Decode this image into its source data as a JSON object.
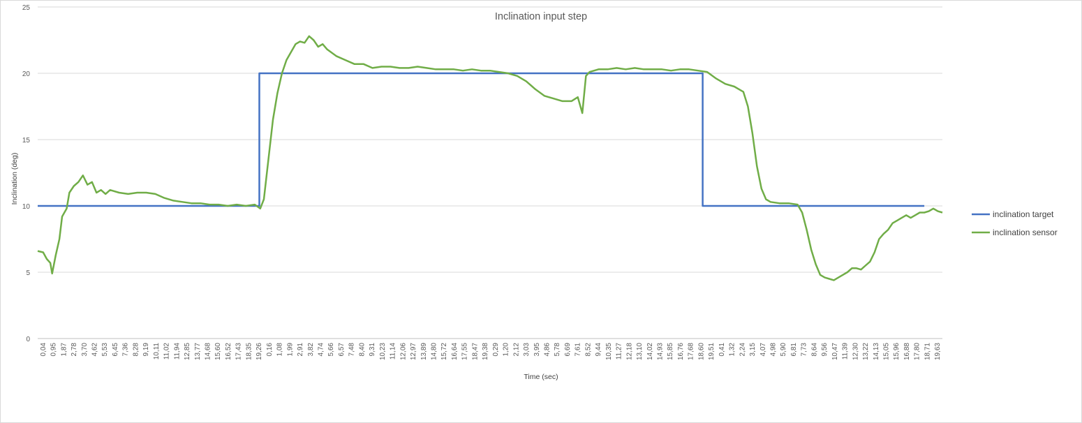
{
  "chart_data": {
    "type": "line",
    "title": "Inclination input step",
    "xlabel": "Time (sec)",
    "ylabel": "Inclination (deg)",
    "ylim": [
      0,
      25
    ],
    "y_ticks": [
      0,
      5,
      10,
      15,
      20,
      25
    ],
    "grid": "horizontal",
    "legend_position": "right",
    "x_tick_labels": [
      "0,04",
      "0,95",
      "1,87",
      "2,78",
      "3,70",
      "4,62",
      "5,53",
      "6,45",
      "7,36",
      "8,28",
      "9,19",
      "10,11",
      "11,02",
      "11,94",
      "12,85",
      "13,77",
      "14,68",
      "15,60",
      "16,52",
      "17,43",
      "18,35",
      "19,26",
      "0,16",
      "1,08",
      "1,99",
      "2,91",
      "3,82",
      "4,74",
      "5,66",
      "6,57",
      "7,48",
      "8,40",
      "9,31",
      "10,23",
      "11,14",
      "12,06",
      "12,97",
      "13,89",
      "14,80",
      "15,72",
      "16,64",
      "17,55",
      "18,47",
      "19,38",
      "0,29",
      "1,20",
      "2,12",
      "3,03",
      "3,95",
      "4,86",
      "5,78",
      "6,69",
      "7,61",
      "8,52",
      "9,44",
      "10,35",
      "11,27",
      "12,18",
      "13,10",
      "14,02",
      "14,93",
      "15,85",
      "16,76",
      "17,68",
      "18,60",
      "19,51",
      "0,41",
      "1,32",
      "2,24",
      "3,15",
      "4,07",
      "4,98",
      "5,90",
      "6,81",
      "7,73",
      "8,64",
      "9,56",
      "10,47",
      "11,39",
      "12,30",
      "13,22",
      "14,13",
      "15,05",
      "15,96",
      "16,88",
      "17,80",
      "18,71",
      "19,63"
    ],
    "series": [
      {
        "name": "inclination target",
        "color": "#4472c4",
        "points": [
          [
            0,
            10
          ],
          [
            24.5,
            10
          ],
          [
            24.5,
            20
          ],
          [
            73.5,
            20
          ],
          [
            73.5,
            10
          ],
          [
            98,
            10
          ]
        ]
      },
      {
        "name": "inclination sensor",
        "color": "#70ad47",
        "points": [
          [
            0,
            6.6
          ],
          [
            0.6,
            6.5
          ],
          [
            1.0,
            6.0
          ],
          [
            1.4,
            5.7
          ],
          [
            1.6,
            4.9
          ],
          [
            2.0,
            6.3
          ],
          [
            2.4,
            7.5
          ],
          [
            2.7,
            9.2
          ],
          [
            3.2,
            9.8
          ],
          [
            3.5,
            11.0
          ],
          [
            4.0,
            11.5
          ],
          [
            4.5,
            11.8
          ],
          [
            5.0,
            12.3
          ],
          [
            5.5,
            11.6
          ],
          [
            6.0,
            11.8
          ],
          [
            6.5,
            11.0
          ],
          [
            7.0,
            11.2
          ],
          [
            7.5,
            10.9
          ],
          [
            8.0,
            11.2
          ],
          [
            9.0,
            11.0
          ],
          [
            10.0,
            10.9
          ],
          [
            11.0,
            11.0
          ],
          [
            12.0,
            11.0
          ],
          [
            13.0,
            10.9
          ],
          [
            14.0,
            10.6
          ],
          [
            15.0,
            10.4
          ],
          [
            16.0,
            10.3
          ],
          [
            17.0,
            10.2
          ],
          [
            18.0,
            10.2
          ],
          [
            19.0,
            10.1
          ],
          [
            20.0,
            10.1
          ],
          [
            21.0,
            10.0
          ],
          [
            22.0,
            10.1
          ],
          [
            23.0,
            10.0
          ],
          [
            24.0,
            10.1
          ],
          [
            24.6,
            9.8
          ],
          [
            25.0,
            10.5
          ],
          [
            25.5,
            13.5
          ],
          [
            26.0,
            16.5
          ],
          [
            26.5,
            18.5
          ],
          [
            27.0,
            20.0
          ],
          [
            27.5,
            21.0
          ],
          [
            28.0,
            21.6
          ],
          [
            28.5,
            22.2
          ],
          [
            29.0,
            22.4
          ],
          [
            29.5,
            22.3
          ],
          [
            30.0,
            22.8
          ],
          [
            30.5,
            22.5
          ],
          [
            31.0,
            22.0
          ],
          [
            31.5,
            22.2
          ],
          [
            32.0,
            21.8
          ],
          [
            33.0,
            21.3
          ],
          [
            34.0,
            21.0
          ],
          [
            35.0,
            20.7
          ],
          [
            36.0,
            20.7
          ],
          [
            37.0,
            20.4
          ],
          [
            38.0,
            20.5
          ],
          [
            39.0,
            20.5
          ],
          [
            40.0,
            20.4
          ],
          [
            41.0,
            20.4
          ],
          [
            42.0,
            20.5
          ],
          [
            43.0,
            20.4
          ],
          [
            44.0,
            20.3
          ],
          [
            45.0,
            20.3
          ],
          [
            46.0,
            20.3
          ],
          [
            47.0,
            20.2
          ],
          [
            48.0,
            20.3
          ],
          [
            49.0,
            20.2
          ],
          [
            50.0,
            20.2
          ],
          [
            51.0,
            20.1
          ],
          [
            52.0,
            20.0
          ],
          [
            53.0,
            19.8
          ],
          [
            54.0,
            19.4
          ],
          [
            55.0,
            18.8
          ],
          [
            56.0,
            18.3
          ],
          [
            57.0,
            18.1
          ],
          [
            58.0,
            17.9
          ],
          [
            59.0,
            17.9
          ],
          [
            59.7,
            18.2
          ],
          [
            60.2,
            17.0
          ],
          [
            60.6,
            19.8
          ],
          [
            61.0,
            20.1
          ],
          [
            62.0,
            20.3
          ],
          [
            63.0,
            20.3
          ],
          [
            64.0,
            20.4
          ],
          [
            65.0,
            20.3
          ],
          [
            66.0,
            20.4
          ],
          [
            67.0,
            20.3
          ],
          [
            68.0,
            20.3
          ],
          [
            69.0,
            20.3
          ],
          [
            70.0,
            20.2
          ],
          [
            71.0,
            20.3
          ],
          [
            72.0,
            20.3
          ],
          [
            73.0,
            20.2
          ],
          [
            74.0,
            20.1
          ],
          [
            75.0,
            19.6
          ],
          [
            76.0,
            19.2
          ],
          [
            77.0,
            19.0
          ],
          [
            78.0,
            18.6
          ],
          [
            78.5,
            17.5
          ],
          [
            79.0,
            15.5
          ],
          [
            79.5,
            13.0
          ],
          [
            80.0,
            11.3
          ],
          [
            80.5,
            10.5
          ],
          [
            81.0,
            10.3
          ],
          [
            82.0,
            10.2
          ],
          [
            83.0,
            10.2
          ],
          [
            84.0,
            10.1
          ],
          [
            84.5,
            9.5
          ],
          [
            85.0,
            8.2
          ],
          [
            85.5,
            6.7
          ],
          [
            86.0,
            5.6
          ],
          [
            86.5,
            4.8
          ],
          [
            87.0,
            4.6
          ],
          [
            87.5,
            4.5
          ],
          [
            88.0,
            4.4
          ],
          [
            88.5,
            4.6
          ],
          [
            89.0,
            4.8
          ],
          [
            89.5,
            5.0
          ],
          [
            90.0,
            5.3
          ],
          [
            90.5,
            5.3
          ],
          [
            91.0,
            5.2
          ],
          [
            91.5,
            5.5
          ],
          [
            92.0,
            5.8
          ],
          [
            92.5,
            6.5
          ],
          [
            93.0,
            7.5
          ],
          [
            93.5,
            7.9
          ],
          [
            94.0,
            8.2
          ],
          [
            94.5,
            8.7
          ],
          [
            95.0,
            8.9
          ],
          [
            95.5,
            9.1
          ],
          [
            96.0,
            9.3
          ],
          [
            96.5,
            9.1
          ],
          [
            97.0,
            9.3
          ],
          [
            97.5,
            9.5
          ],
          [
            98.0,
            9.5
          ],
          [
            98.5,
            9.6
          ],
          [
            99.0,
            9.8
          ],
          [
            99.5,
            9.6
          ],
          [
            100.0,
            9.5
          ]
        ]
      }
    ]
  }
}
